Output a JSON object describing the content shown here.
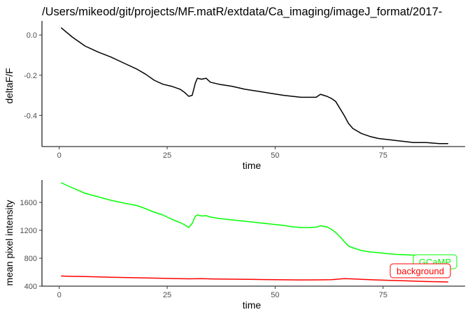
{
  "title": "/Users/mikeod/git/projects/MF.matR/extdata/Ca_imaging/imageJ_format/2017-",
  "chart_data": [
    {
      "type": "line",
      "xlabel": "time",
      "ylabel": "deltaF/F",
      "xlim": [
        -4,
        94
      ],
      "ylim": [
        -0.555,
        0.07
      ],
      "x_ticks": [
        0,
        25,
        50,
        75
      ],
      "x_tick_labels": [
        "0",
        "25",
        "50",
        "75"
      ],
      "y_ticks": [
        0.0,
        -0.2,
        -0.4
      ],
      "y_tick_labels": [
        "0.0",
        "-0.2",
        "-0.4"
      ],
      "grid": false,
      "series": [
        {
          "color": "#000000",
          "x": [
            0.5,
            3,
            6,
            9,
            12,
            15,
            18,
            20,
            22,
            24,
            26,
            28,
            29,
            30,
            30.8,
            31.5,
            32,
            33,
            34,
            35,
            37,
            40,
            43,
            46,
            49,
            52,
            54,
            56,
            58,
            59.5,
            60.5,
            62,
            63,
            64,
            65,
            66,
            67,
            68,
            70,
            72,
            74,
            76,
            78,
            80,
            82,
            85,
            88,
            90
          ],
          "y": [
            0.035,
            -0.01,
            -0.055,
            -0.085,
            -0.11,
            -0.14,
            -0.17,
            -0.195,
            -0.225,
            -0.245,
            -0.255,
            -0.27,
            -0.285,
            -0.305,
            -0.3,
            -0.24,
            -0.215,
            -0.22,
            -0.215,
            -0.235,
            -0.245,
            -0.255,
            -0.27,
            -0.28,
            -0.29,
            -0.3,
            -0.305,
            -0.31,
            -0.31,
            -0.31,
            -0.295,
            -0.305,
            -0.315,
            -0.33,
            -0.365,
            -0.4,
            -0.44,
            -0.465,
            -0.49,
            -0.505,
            -0.515,
            -0.52,
            -0.525,
            -0.53,
            -0.535,
            -0.535,
            -0.54,
            -0.54
          ]
        }
      ]
    },
    {
      "type": "line",
      "xlabel": "time",
      "ylabel": "mean pixel intensity",
      "xlim": [
        -4,
        94
      ],
      "ylim": [
        400,
        1920
      ],
      "x_ticks": [
        0,
        25,
        50,
        75
      ],
      "x_tick_labels": [
        "0",
        "25",
        "50",
        "75"
      ],
      "y_ticks": [
        400,
        800,
        1200,
        1600
      ],
      "y_tick_labels": [
        "400",
        "800",
        "1200",
        "1600"
      ],
      "grid": false,
      "series": [
        {
          "name": "GCaMP",
          "color": "#00ff00",
          "x": [
            0.5,
            3,
            6,
            9,
            12,
            15,
            18,
            20,
            22,
            24,
            26,
            28,
            29,
            30,
            30.8,
            31.5,
            32,
            33,
            34,
            35,
            37,
            40,
            43,
            46,
            49,
            52,
            54,
            56,
            58,
            59.5,
            60.5,
            62,
            63,
            64,
            65,
            66,
            67,
            68,
            70,
            72,
            74,
            76,
            78,
            80,
            82,
            85,
            88,
            90
          ],
          "y": [
            1880,
            1810,
            1730,
            1680,
            1630,
            1590,
            1555,
            1510,
            1460,
            1420,
            1360,
            1310,
            1280,
            1240,
            1300,
            1400,
            1420,
            1405,
            1410,
            1390,
            1370,
            1350,
            1330,
            1310,
            1290,
            1270,
            1250,
            1240,
            1240,
            1245,
            1265,
            1250,
            1215,
            1170,
            1110,
            1040,
            975,
            950,
            910,
            890,
            880,
            865,
            855,
            850,
            845,
            840,
            830,
            820
          ]
        },
        {
          "name": "background",
          "color": "#ff0000",
          "x": [
            0.5,
            3,
            6,
            9,
            12,
            15,
            18,
            21,
            24,
            27,
            30,
            33,
            36,
            40,
            44,
            48,
            52,
            56,
            60,
            63,
            66,
            68,
            70,
            73,
            76,
            79,
            82,
            85,
            88,
            90
          ],
          "y": [
            545,
            540,
            538,
            532,
            528,
            524,
            520,
            516,
            512,
            508,
            505,
            507,
            503,
            500,
            497,
            494,
            491,
            489,
            490,
            493,
            508,
            504,
            497,
            490,
            484,
            479,
            472,
            466,
            462,
            460
          ]
        }
      ]
    }
  ]
}
